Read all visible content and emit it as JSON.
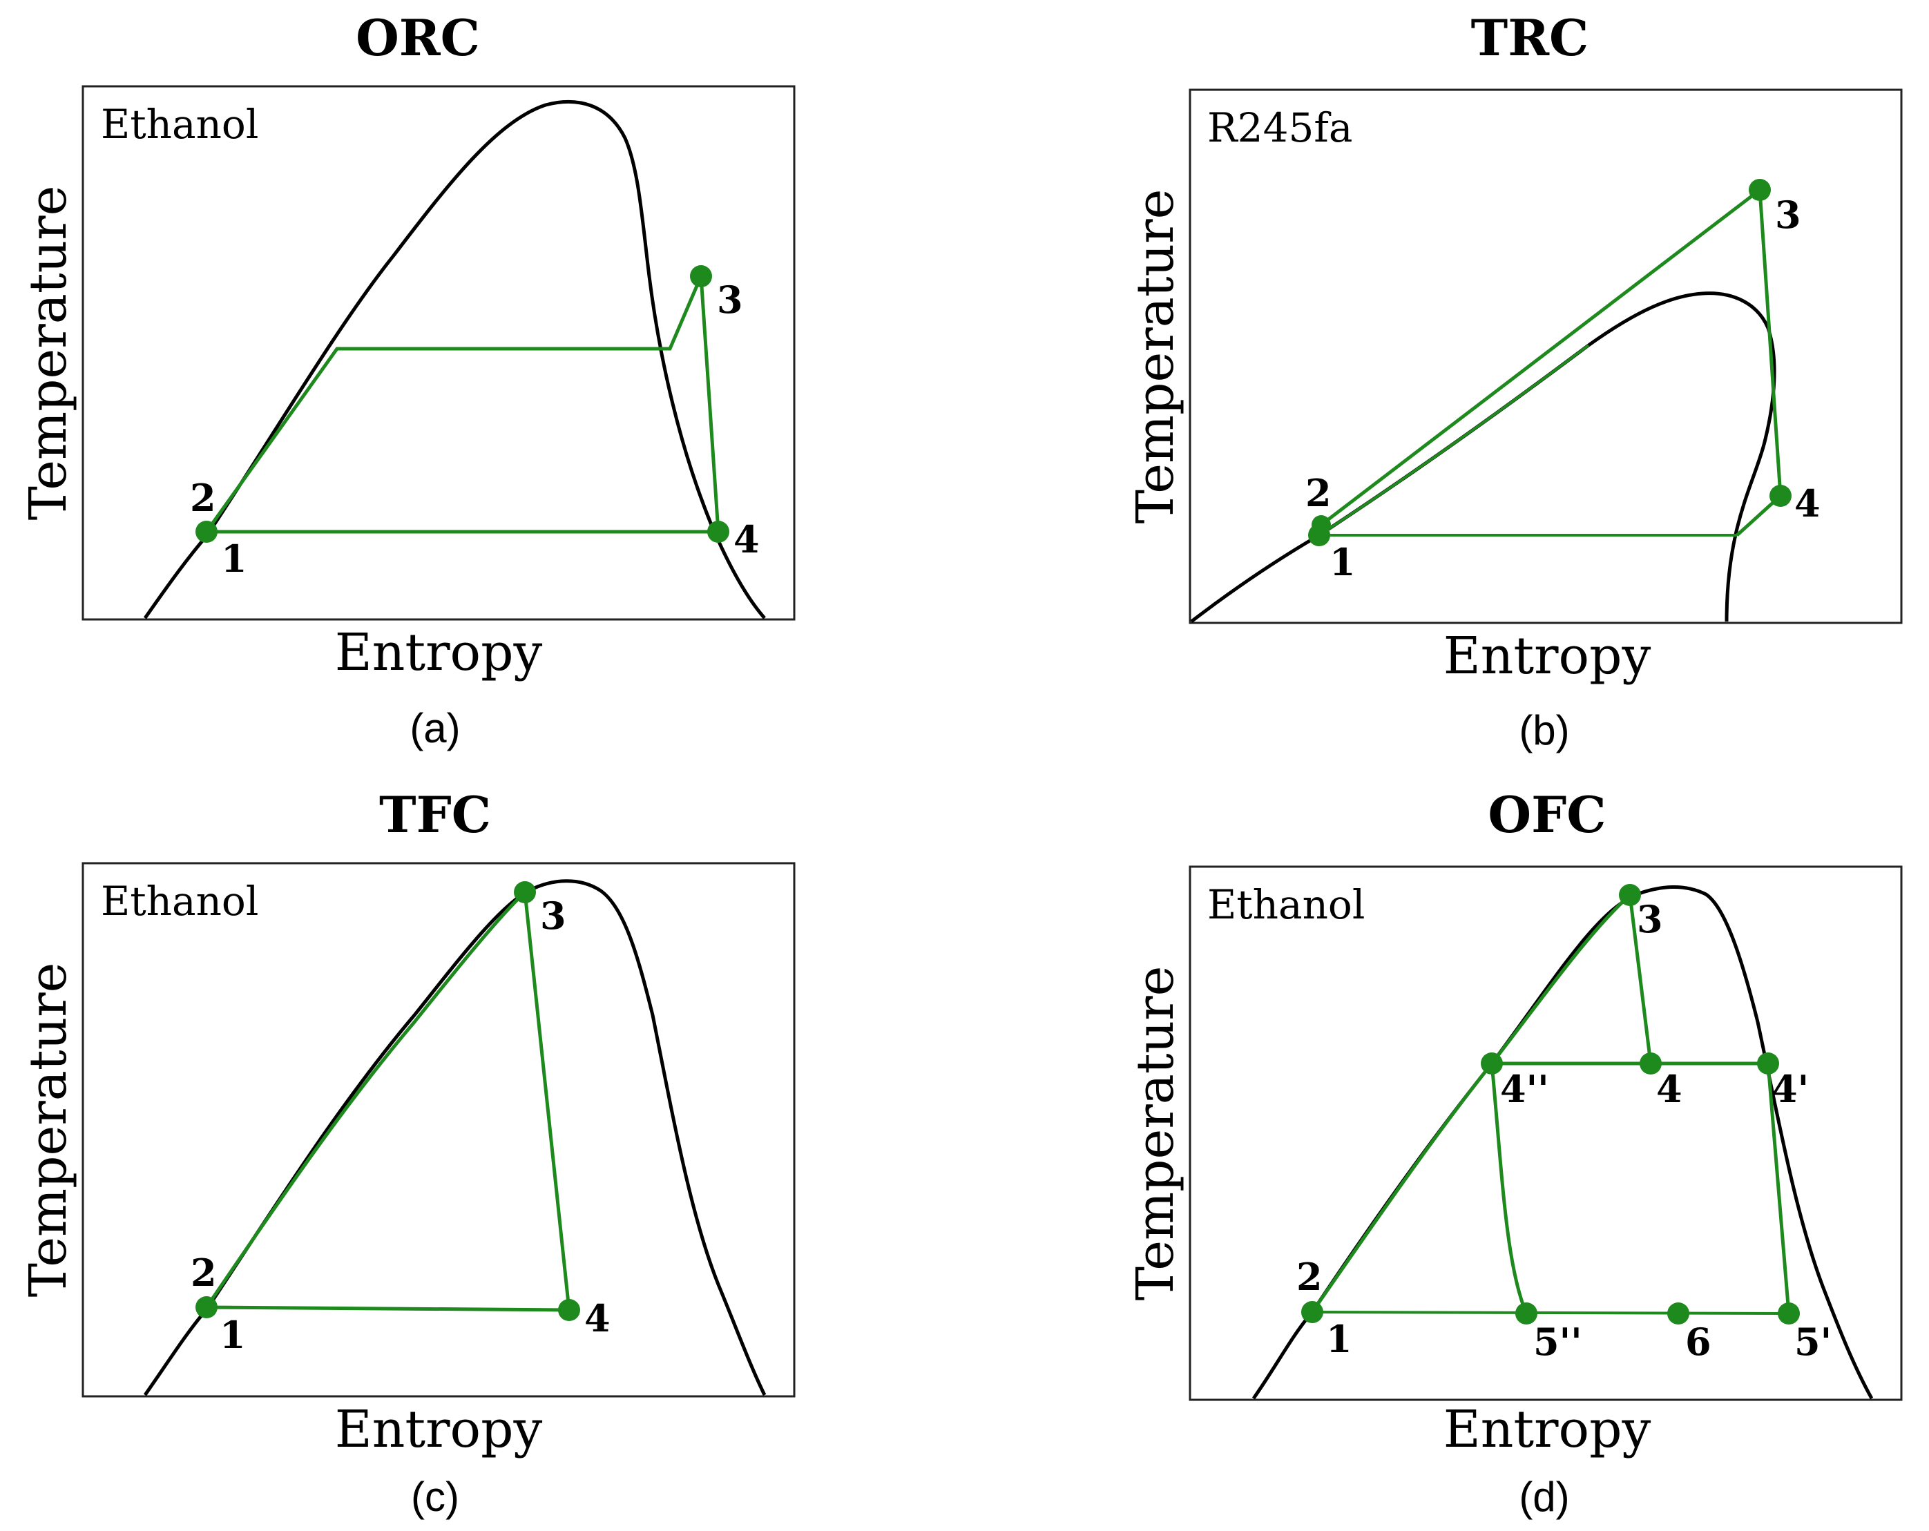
{
  "colors": {
    "cycle": "#1e8a1e",
    "dome": "#000000",
    "frame": "#222222"
  },
  "panels": [
    {
      "id": "a",
      "title": "ORC",
      "caption": "(a)",
      "fluid": "Ethanol",
      "xlabel": "Entropy",
      "ylabel": "Temperature",
      "points": [
        {
          "label": "1"
        },
        {
          "label": "2"
        },
        {
          "label": "3"
        },
        {
          "label": "4"
        }
      ]
    },
    {
      "id": "b",
      "title": "TRC",
      "caption": "(b)",
      "fluid": "R245fa",
      "xlabel": "Entropy",
      "ylabel": "Temperature",
      "points": [
        {
          "label": "1"
        },
        {
          "label": "2"
        },
        {
          "label": "3"
        },
        {
          "label": "4"
        }
      ]
    },
    {
      "id": "c",
      "title": "TFC",
      "caption": "(c)",
      "fluid": "Ethanol",
      "xlabel": "Entropy",
      "ylabel": "Temperature",
      "points": [
        {
          "label": "1"
        },
        {
          "label": "2"
        },
        {
          "label": "3"
        },
        {
          "label": "4"
        }
      ]
    },
    {
      "id": "d",
      "title": "OFC",
      "caption": "(d)",
      "fluid": "Ethanol",
      "xlabel": "Entropy",
      "ylabel": "Temperature",
      "points": [
        {
          "label": "1"
        },
        {
          "label": "2"
        },
        {
          "label": "3"
        },
        {
          "label": "4"
        },
        {
          "label": "4''"
        },
        {
          "label": "4'"
        },
        {
          "label": "5''"
        },
        {
          "label": "6"
        },
        {
          "label": "5'"
        }
      ]
    }
  ]
}
